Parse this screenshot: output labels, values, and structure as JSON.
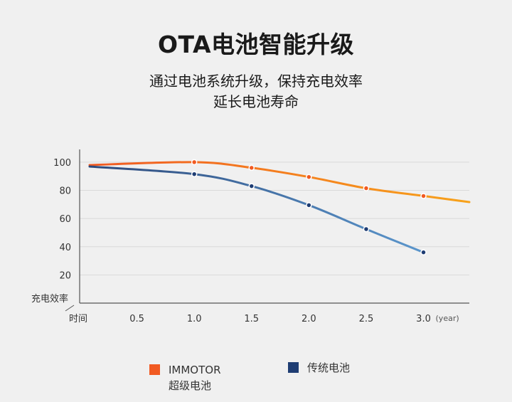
{
  "title": "OTA电池智能升级",
  "subtitle": [
    "通过电池系统升级，保持充电效率",
    "延长电池寿命"
  ],
  "chart_data": {
    "type": "line",
    "ylabel": "充电效率",
    "xlabel": "时间",
    "x_unit": "(year)",
    "x_ticks": [
      "0.5",
      "1.0",
      "1.5",
      "2.0",
      "2.5",
      "3.0"
    ],
    "y_ticks": [
      20,
      40,
      60,
      80,
      100
    ],
    "xlim": [
      0,
      3.4
    ],
    "ylim": [
      0,
      105
    ],
    "grid": true,
    "legend_position": "bottom",
    "series": [
      {
        "name": "IMMOTOR 超级电池",
        "legend_lines": [
          "IMMOTOR",
          "超级电池"
        ],
        "color": "#f15a22",
        "line_colors": [
          "#f15a22",
          "#f7a21b"
        ],
        "x": [
          1.0,
          1.5,
          2.0,
          2.5,
          3.0
        ],
        "values": [
          100,
          96,
          89.5,
          81.5,
          76
        ]
      },
      {
        "name": "传统电池",
        "legend_lines": [
          "传统电池"
        ],
        "color": "#1f3d73",
        "line_colors": [
          "#2d4a7c",
          "#5b96cc"
        ],
        "x": [
          1.0,
          1.5,
          2.0,
          2.5,
          3.0
        ],
        "values": [
          91.5,
          83,
          69.5,
          52.5,
          36
        ]
      }
    ]
  }
}
